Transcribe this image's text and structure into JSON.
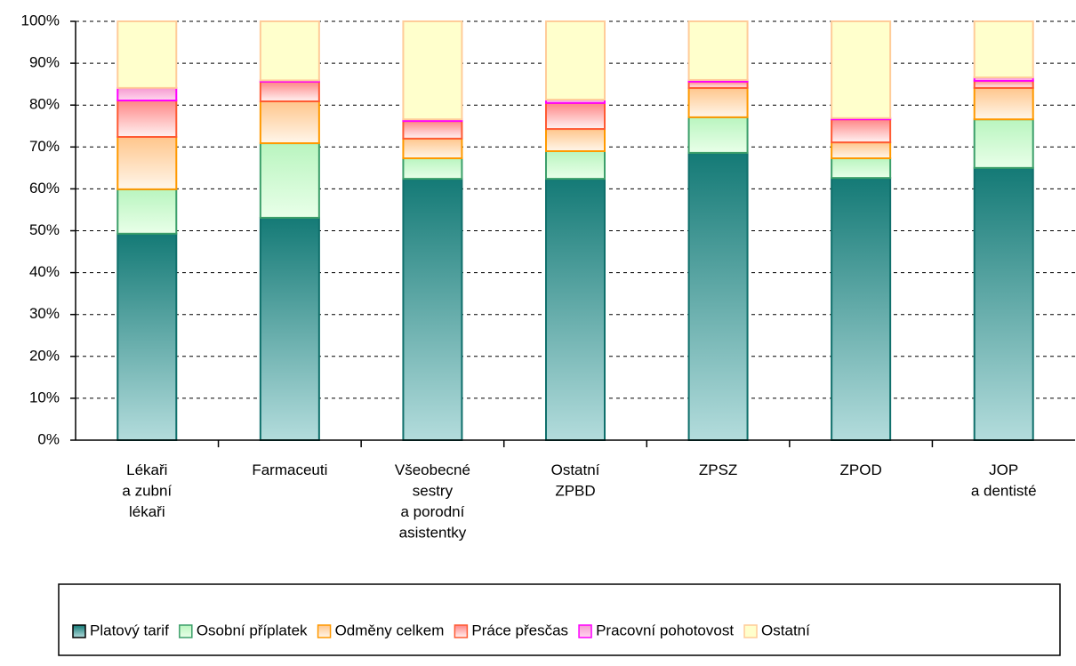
{
  "chart_data": {
    "type": "stacked_bar_percent",
    "categories": [
      [
        "Lékaři",
        "a zubní",
        "lékaři"
      ],
      [
        "Farmaceuti"
      ],
      [
        "Všeobecné",
        "sestry",
        "a porodní",
        "asistentky"
      ],
      [
        "Ostatní",
        "ZPBD"
      ],
      [
        "ZPSZ"
      ],
      [
        "ZPOD"
      ],
      [
        "JOP",
        "a dentisté"
      ]
    ],
    "series": [
      {
        "name": "Platový tarif",
        "color": "#0f6f6b",
        "gradient": [
          "#147a76",
          "#b3dcdc"
        ],
        "values": [
          49.3,
          53.1,
          62.4,
          62.4,
          68.6,
          62.6,
          65.0
        ]
      },
      {
        "name": "Osobní příplatek",
        "color": "#3c9f6a",
        "gradient": [
          "#b9f5bf",
          "#e9ffe9"
        ],
        "values": [
          10.6,
          17.8,
          4.9,
          6.6,
          8.5,
          4.7,
          11.6
        ]
      },
      {
        "name": "Odměny celkem",
        "color": "#ff9900",
        "gradient": [
          "#ffc68c",
          "#fff6ea"
        ],
        "values": [
          12.5,
          10.0,
          4.7,
          5.3,
          7.0,
          3.8,
          7.5
        ]
      },
      {
        "name": "Práce přesčas",
        "color": "#ff5a33",
        "gradient": [
          "#ff8585",
          "#fff2f2"
        ],
        "values": [
          8.7,
          4.7,
          4.2,
          6.2,
          1.5,
          5.5,
          1.7
        ]
      },
      {
        "name": "Pracovní pohotovost",
        "color": "#ff00ff",
        "gradient": [
          "#f59ad0",
          "#ffd6ee"
        ],
        "values": [
          3.0,
          0.3,
          0.4,
          0.8,
          0.4,
          0.3,
          0.8
        ]
      },
      {
        "name": "Ostatní",
        "color": "#ffcc99",
        "gradient": [
          "#ffffcc",
          "#ffffcc"
        ],
        "values": [
          15.9,
          14.1,
          23.4,
          18.7,
          14.0,
          23.1,
          13.4
        ]
      }
    ],
    "ylim": [
      0,
      100
    ],
    "yticks": [
      {
        "value": 0,
        "label": "0%"
      },
      {
        "value": 10,
        "label": "10%"
      },
      {
        "value": 20,
        "label": "20%"
      },
      {
        "value": 30,
        "label": "30%"
      },
      {
        "value": 40,
        "label": "40%"
      },
      {
        "value": 50,
        "label": "50%"
      },
      {
        "value": 60,
        "label": "60%"
      },
      {
        "value": 70,
        "label": "70%"
      },
      {
        "value": 80,
        "label": "80%"
      },
      {
        "value": 90,
        "label": "90%"
      },
      {
        "value": 100,
        "label": "100%"
      }
    ],
    "grid": true,
    "legend": "bottom"
  }
}
